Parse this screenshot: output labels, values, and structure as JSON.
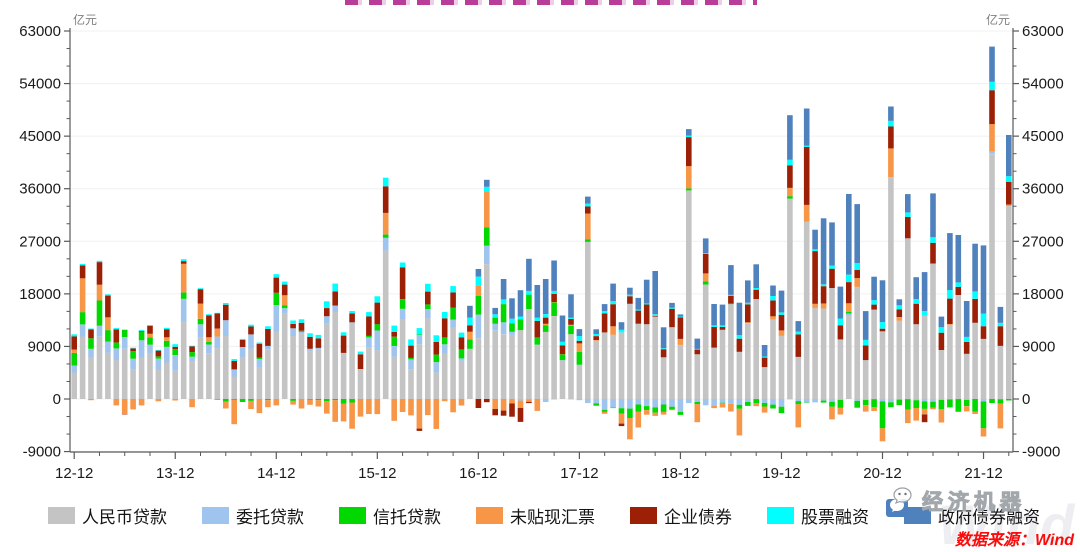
{
  "header": {
    "clipped_title_note": "red chart title cropped off at top edge of screenshot",
    "title_color": "#b1268e"
  },
  "axes": {
    "unit_label": "亿元",
    "y_tick_labels": [
      "63000",
      "54000",
      "45000",
      "36000",
      "27000",
      "18000",
      "9000",
      "0",
      "-9000"
    ],
    "y_tick_values": [
      63000,
      54000,
      45000,
      36000,
      27000,
      18000,
      9000,
      0,
      -9000
    ],
    "x_tick_labels": [
      "12-12",
      "13-12",
      "14-12",
      "15-12",
      "16-12",
      "17-12",
      "18-12",
      "19-12",
      "20-12",
      "21-12"
    ]
  },
  "legend": {
    "items": [
      {
        "label": "人民币贷款",
        "color": "#c4c4c4"
      },
      {
        "label": "委托贷款",
        "color": "#9fc5ef"
      },
      {
        "label": "信托贷款",
        "color": "#00d800"
      },
      {
        "label": "未贴现汇票",
        "color": "#f79646"
      },
      {
        "label": "企业债券",
        "color": "#9c2005"
      },
      {
        "label": "股票融资",
        "color": "#00ffff"
      },
      {
        "label": "政府债券融资",
        "color": "#4f81bd"
      }
    ]
  },
  "watermark": {
    "brand": "经济机器",
    "wind": "Wind"
  },
  "source": {
    "text": "数据来源：Wind",
    "color": "#fb0a0a"
  },
  "chart_data": {
    "type": "bar",
    "stacked": true,
    "ylabel": "亿元",
    "ylim": [
      -9000,
      63000
    ],
    "grid": true,
    "legend_position": "bottom",
    "months": [
      "12-12",
      "13-01",
      "13-02",
      "13-03",
      "13-04",
      "13-05",
      "13-06",
      "13-07",
      "13-08",
      "13-09",
      "13-10",
      "13-11",
      "13-12",
      "14-01",
      "14-02",
      "14-03",
      "14-04",
      "14-05",
      "14-06",
      "14-07",
      "14-08",
      "14-09",
      "14-10",
      "14-11",
      "14-12",
      "15-01",
      "15-02",
      "15-03",
      "15-04",
      "15-05",
      "15-06",
      "15-07",
      "15-08",
      "15-09",
      "15-10",
      "15-11",
      "15-12",
      "16-01",
      "16-02",
      "16-03",
      "16-04",
      "16-05",
      "16-06",
      "16-07",
      "16-08",
      "16-09",
      "16-10",
      "16-11",
      "16-12",
      "17-01",
      "17-02",
      "17-03",
      "17-04",
      "17-05",
      "17-06",
      "17-07",
      "17-08",
      "17-09",
      "17-10",
      "17-11",
      "17-12",
      "18-01",
      "18-02",
      "18-03",
      "18-04",
      "18-05",
      "18-06",
      "18-07",
      "18-08",
      "18-09",
      "18-10",
      "18-11",
      "18-12",
      "19-01",
      "19-02",
      "19-03",
      "19-04",
      "19-05",
      "19-06",
      "19-07",
      "19-08",
      "19-09",
      "19-10",
      "19-11",
      "19-12",
      "20-01",
      "20-02",
      "20-03",
      "20-04",
      "20-05",
      "20-06",
      "20-07",
      "20-08",
      "20-09",
      "20-10",
      "20-11",
      "20-12",
      "21-01",
      "21-02",
      "21-03",
      "21-04",
      "21-05",
      "21-06",
      "21-07",
      "21-08",
      "21-09",
      "21-10",
      "21-11",
      "21-12",
      "22-01",
      "22-02",
      "22-03"
    ],
    "series": [
      {
        "name": "人民币贷款",
        "color": "#c4c4c4",
        "values": [
          4543,
          10700,
          7200,
          10670,
          7920,
          6670,
          8610,
          5000,
          7110,
          7870,
          5060,
          6250,
          4830,
          13200,
          6450,
          10500,
          7740,
          8710,
          10790,
          3850,
          7030,
          8620,
          5480,
          8530,
          11500,
          14700,
          10800,
          11300,
          8120,
          8510,
          13000,
          14900,
          7760,
          12900,
          5140,
          8860,
          8320,
          25400,
          7260,
          13700,
          5090,
          9370,
          13800,
          4550,
          7870,
          12200,
          6520,
          8400,
          10400,
          23100,
          11700,
          11100,
          11000,
          11800,
          15400,
          9150,
          11500,
          14200,
          6630,
          11100,
          5840,
          26900,
          9960,
          11400,
          11000,
          11400,
          16300,
          12900,
          12800,
          14100,
          7140,
          12300,
          9270,
          35700,
          7640,
          19600,
          8730,
          11850,
          16300,
          8090,
          13000,
          17100,
          5470,
          13600,
          10800,
          34300,
          7200,
          30400,
          15700,
          15500,
          19000,
          10200,
          14200,
          19200,
          6660,
          15300,
          11600,
          38000,
          13400,
          27500,
          12800,
          14300,
          23200,
          8390,
          12700,
          17800,
          7750,
          13000,
          10300,
          41900,
          9080,
          32900
        ]
      },
      {
        "name": "委托贷款",
        "color": "#9fc5ef",
        "values": [
          1200,
          2060,
          1400,
          1890,
          1930,
          2000,
          2000,
          1900,
          2940,
          1430,
          1830,
          2700,
          2710,
          3970,
          800,
          2290,
          1600,
          1970,
          2700,
          1220,
          1750,
          2440,
          1380,
          570,
          4580,
          830,
          1310,
          190,
          470,
          240,
          1190,
          1110,
          140,
          220,
          -30,
          1690,
          3410,
          2200,
          1800,
          1750,
          1690,
          1570,
          1590,
          1770,
          1500,
          1400,
          430,
          190,
          4060,
          3140,
          1170,
          2040,
          510,
          -280,
          -50,
          160,
          -510,
          -80,
          20,
          -20,
          -210,
          -710,
          -750,
          -1850,
          -1480,
          -1570,
          -1640,
          -950,
          -1210,
          -1430,
          -950,
          -1310,
          -2210,
          -700,
          -510,
          -1070,
          -1200,
          -630,
          -830,
          -990,
          -510,
          -20,
          -670,
          -960,
          -1320,
          -30,
          -360,
          -590,
          -580,
          -270,
          -480,
          -150,
          420,
          -320,
          -170,
          -30,
          -410,
          -560,
          -100,
          -40,
          -210,
          -410,
          -470,
          -150,
          -80,
          -20,
          -170,
          40,
          -420,
          430,
          -50,
          110
        ]
      },
      {
        "name": "信托贷款",
        "color": "#00d800",
        "values": [
          2150,
          2110,
          1800,
          4310,
          1950,
          990,
          1200,
          1300,
          1470,
          1270,
          400,
          1020,
          1020,
          1070,
          780,
          940,
          420,
          -120,
          -470,
          -160,
          -520,
          -330,
          180,
          -200,
          2100,
          520,
          -330,
          200,
          -90,
          -200,
          -390,
          -210,
          -770,
          -600,
          -90,
          240,
          1090,
          550,
          1600,
          1660,
          270,
          120,
          810,
          1280,
          1130,
          2070,
          1550,
          1630,
          3170,
          3170,
          1060,
          3110,
          1470,
          1810,
          2470,
          1230,
          1140,
          2370,
          1030,
          1430,
          2250,
          460,
          -400,
          -360,
          -90,
          -900,
          -1620,
          -1190,
          -690,
          -910,
          -1270,
          -470,
          -510,
          350,
          -370,
          530,
          130,
          -50,
          20,
          -680,
          -660,
          -670,
          -620,
          -670,
          -1090,
          430,
          -540,
          -50,
          20,
          -340,
          -850,
          -1370,
          320,
          -1160,
          -870,
          -1390,
          -4600,
          -840,
          -940,
          -1790,
          -1330,
          -1290,
          -1050,
          -1570,
          -1360,
          -2130,
          -1060,
          -2190,
          -4580,
          -680,
          -750,
          -260
        ]
      },
      {
        "name": "未贴现汇票",
        "color": "#f79646",
        "values": [
          575,
          5800,
          -200,
          2700,
          2200,
          -1100,
          -2600,
          -1780,
          -1100,
          600,
          -400,
          600,
          -260,
          4900,
          -1410,
          2600,
          800,
          1360,
          -1170,
          -4160,
          110,
          -1390,
          -2410,
          -1190,
          -1100,
          1690,
          -640,
          -1620,
          -900,
          -1070,
          -2100,
          -3700,
          -3060,
          -4480,
          -2900,
          -2560,
          -2590,
          3720,
          -3730,
          -2230,
          -2800,
          -5070,
          -2750,
          -5120,
          -380,
          -2280,
          -1120,
          1300,
          1840,
          6130,
          -1720,
          -1980,
          -770,
          -1250,
          -450,
          -2040,
          240,
          30,
          10,
          170,
          1440,
          4400,
          110,
          -320,
          1450,
          -1740,
          -3650,
          -2740,
          -780,
          -550,
          -450,
          -130,
          1020,
          3790,
          -3100,
          1370,
          -360,
          -770,
          -1310,
          -4560,
          160,
          -550,
          -1050,
          570,
          950,
          1400,
          -3960,
          2820,
          580,
          840,
          -2160,
          -1130,
          1440,
          1500,
          -1120,
          -630,
          -2220,
          4900,
          640,
          -2300,
          -2150,
          -930,
          -220,
          -2310,
          150,
          -20,
          -890,
          -380,
          -1420,
          4730,
          -4230,
          290
        ]
      },
      {
        "name": "企业债券",
        "color": "#9c2005",
        "values": [
          2262,
          2200,
          1500,
          3870,
          3710,
          2230,
          -30,
          460,
          120,
          1370,
          990,
          1380,
          380,
          460,
          990,
          2470,
          3770,
          2590,
          2660,
          1430,
          1240,
          1360,
          2420,
          2890,
          2600,
          1840,
          750,
          1360,
          2060,
          1650,
          1380,
          2400,
          2960,
          1530,
          2520,
          3360,
          3690,
          4550,
          820,
          5400,
          2100,
          -400,
          2190,
          2190,
          3310,
          2580,
          2070,
          1100,
          -1540,
          -540,
          -1080,
          -870,
          -2260,
          -2400,
          -210,
          2840,
          1060,
          1410,
          1500,
          1010,
          440,
          1190,
          690,
          3250,
          3780,
          -430,
          1300,
          2240,
          3380,
          140,
          1380,
          3160,
          3700,
          4990,
          810,
          3350,
          3470,
          490,
          1340,
          2240,
          3040,
          1610,
          1620,
          2700,
          2630,
          3870,
          3860,
          9950,
          9020,
          2970,
          3310,
          2380,
          3630,
          1420,
          2520,
          860,
          440,
          3750,
          1310,
          3670,
          3510,
          -1340,
          3540,
          2960,
          4340,
          1400,
          2030,
          4100,
          2170,
          5800,
          3380,
          3890
        ]
      },
      {
        "name": "股票融资",
        "color": "#00ffff",
        "values": [
          352,
          244,
          170,
          220,
          210,
          240,
          90,
          120,
          150,
          130,
          120,
          200,
          440,
          340,
          100,
          160,
          180,
          120,
          290,
          330,
          160,
          300,
          220,
          450,
          590,
          520,
          580,
          600,
          600,
          580,
          1150,
          1340,
          560,
          410,
          450,
          730,
          1070,
          1470,
          1080,
          860,
          1060,
          1070,
          1340,
          1110,
          1080,
          1070,
          790,
          1340,
          1490,
          790,
          570,
          800,
          760,
          510,
          640,
          540,
          600,
          500,
          600,
          220,
          800,
          500,
          380,
          400,
          530,
          440,
          260,
          170,
          140,
          270,
          180,
          200,
          130,
          290,
          120,
          120,
          260,
          260,
          150,
          590,
          260,
          290,
          180,
          760,
          430,
          980,
          450,
          200,
          310,
          320,
          530,
          1210,
          1280,
          1140,
          930,
          770,
          1120,
          990,
          690,
          780,
          810,
          720,
          960,
          940,
          1470,
          770,
          850,
          1290,
          2120,
          1440,
          590,
          960
        ]
      },
      {
        "name": "政府债券融资",
        "color": "#4f81bd",
        "values": [
          0,
          0,
          0,
          0,
          0,
          0,
          0,
          0,
          0,
          0,
          0,
          0,
          0,
          0,
          0,
          0,
          0,
          0,
          0,
          0,
          0,
          0,
          0,
          0,
          0,
          0,
          0,
          0,
          0,
          0,
          0,
          0,
          0,
          0,
          0,
          0,
          0,
          0,
          0,
          0,
          0,
          0,
          0,
          0,
          0,
          0,
          0,
          2000,
          1300,
          1200,
          1100,
          3500,
          3500,
          4500,
          5500,
          5600,
          6000,
          5200,
          4500,
          4000,
          1200,
          1200,
          800,
          1200,
          3000,
          1300,
          1200,
          2000,
          4100,
          7400,
          3570,
          800,
          360,
          1090,
          1770,
          2530,
          3670,
          3560,
          5110,
          5560,
          3840,
          4060,
          1970,
          1800,
          3740,
          7610,
          1820,
          6360,
          3360,
          11300,
          7400,
          5460,
          13800,
          10100,
          4930,
          4000,
          7160,
          2440,
          1020,
          3130,
          3740,
          6700,
          7500,
          1820,
          9740,
          8110,
          6150,
          8160,
          11700,
          6030,
          2720,
          7050
        ]
      }
    ]
  }
}
